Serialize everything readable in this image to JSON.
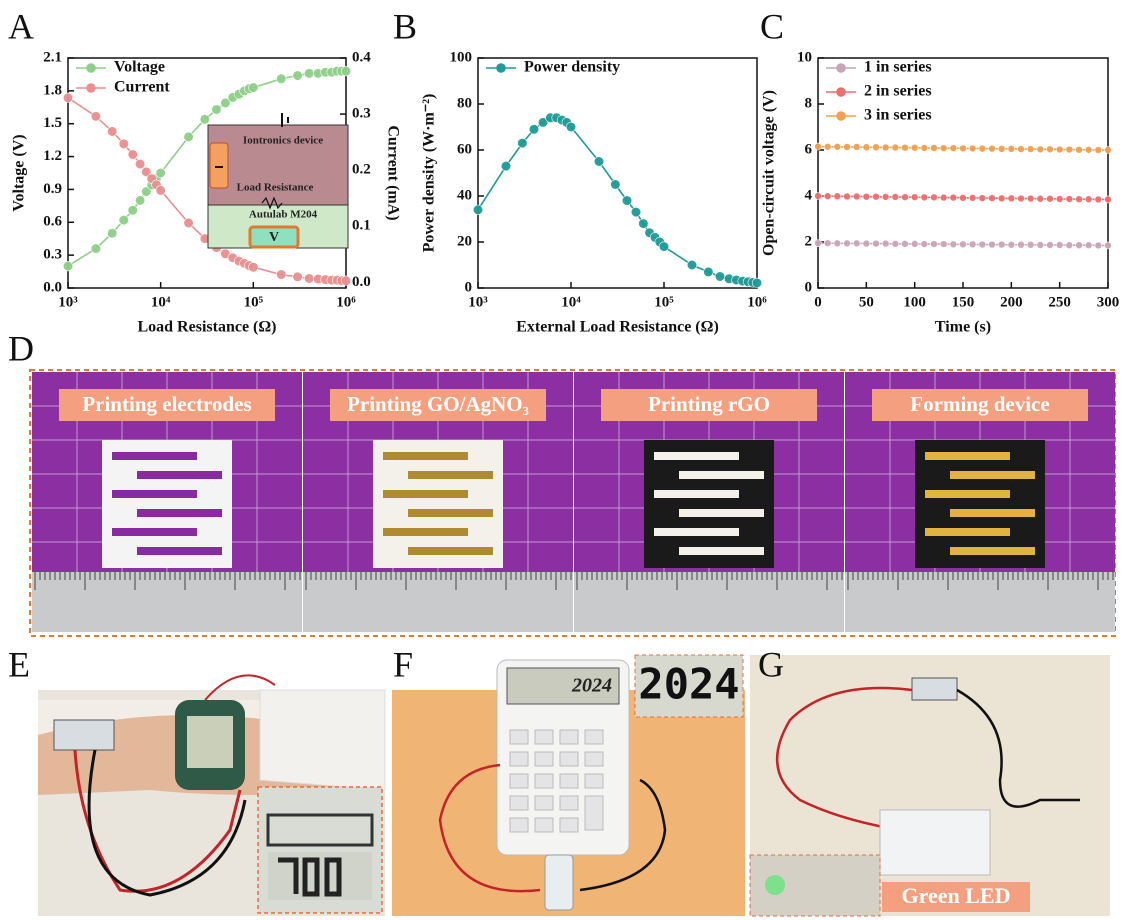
{
  "panel_labels": [
    "A",
    "B",
    "C",
    "D",
    "E",
    "F",
    "G"
  ],
  "chart_data": [
    {
      "type": "line",
      "xscale": "log",
      "xlabel": "Load Resistance (Ω)",
      "ylabel": "Voltage (V)",
      "y2label": "Current (mA)",
      "x": [
        1000,
        2000,
        3000,
        4000,
        5000,
        6000,
        7000,
        8000,
        9000,
        10000,
        20000,
        30000,
        40000,
        50000,
        60000,
        70000,
        80000,
        90000,
        100000,
        200000,
        300000,
        400000,
        500000,
        600000,
        700000,
        800000,
        900000,
        1000000
      ],
      "xlim": [
        1000,
        1000000
      ],
      "xticks": [
        {
          "value": 1000,
          "label": "10³"
        },
        {
          "value": 10000,
          "label": "10⁴"
        },
        {
          "value": 100000,
          "label": "10⁵"
        },
        {
          "value": 1000000,
          "label": "10⁶"
        }
      ],
      "ylim": [
        0,
        2.1
      ],
      "yticks": [
        {
          "value": 0,
          "label": "0.0"
        },
        0.3,
        0.6,
        0.9,
        1.2,
        1.5,
        1.8,
        2.1
      ],
      "y2lim": [
        -0.01,
        0.4
      ],
      "y2ticks": [
        {
          "value": 0,
          "label": "0.0"
        },
        0.1,
        0.2,
        0.3,
        0.4
      ],
      "legend": "upper left",
      "series": [
        {
          "name": "Voltage",
          "color": "#8fcf8a",
          "values": [
            0.2,
            0.36,
            0.5,
            0.62,
            0.71,
            0.8,
            0.88,
            0.94,
            1.0,
            1.05,
            1.38,
            1.54,
            1.63,
            1.69,
            1.74,
            1.77,
            1.8,
            1.82,
            1.83,
            1.91,
            1.94,
            1.96,
            1.96,
            1.97,
            1.97,
            1.98,
            1.98,
            1.98
          ]
        },
        {
          "name": "Current",
          "color": "#e89090",
          "axis": "y2",
          "values": [
            0.329,
            0.296,
            0.269,
            0.247,
            0.228,
            0.211,
            0.197,
            0.185,
            0.174,
            0.164,
            0.106,
            0.078,
            0.062,
            0.051,
            0.044,
            0.038,
            0.034,
            0.03,
            0.027,
            0.014,
            0.01,
            0.007,
            0.006,
            0.005,
            0.004,
            0.004,
            0.003,
            0.003
          ]
        }
      ],
      "annotations": [
        "Iontronics device",
        "Load Resistance",
        "Autulab M204",
        "V"
      ]
    },
    {
      "type": "line",
      "xscale": "log",
      "xlabel": "External Load Resistance (Ω)",
      "ylabel": "Power density (W·m⁻²)",
      "x": [
        1000,
        2000,
        3000,
        4000,
        5000,
        6000,
        7000,
        8000,
        9000,
        10000,
        20000,
        30000,
        40000,
        50000,
        60000,
        70000,
        80000,
        90000,
        100000,
        200000,
        300000,
        400000,
        500000,
        600000,
        700000,
        800000,
        900000,
        1000000
      ],
      "xlim": [
        1000,
        1000000
      ],
      "xticks": [
        {
          "value": 1000,
          "label": "10³"
        },
        {
          "value": 10000,
          "label": "10⁴"
        },
        {
          "value": 100000,
          "label": "10⁵"
        },
        {
          "value": 1000000,
          "label": "10⁶"
        }
      ],
      "ylim": [
        0,
        100
      ],
      "yticks": [
        0,
        20,
        40,
        60,
        80,
        100
      ],
      "legend": "upper left",
      "series": [
        {
          "name": "Power density",
          "color": "#1f9a96",
          "values": [
            34,
            53,
            63,
            69,
            72,
            74,
            74,
            73,
            72,
            70,
            55,
            45,
            38,
            33,
            28,
            24,
            22,
            20,
            18,
            10,
            7,
            5,
            4,
            3.5,
            3,
            2.7,
            2.4,
            2.2
          ]
        }
      ]
    },
    {
      "type": "line",
      "xlabel": "Time (s)",
      "ylabel": "Open-circuit voltage (V)",
      "x": [
        0,
        10,
        20,
        30,
        40,
        50,
        60,
        70,
        80,
        90,
        100,
        110,
        120,
        130,
        140,
        150,
        160,
        170,
        180,
        190,
        200,
        210,
        220,
        230,
        240,
        250,
        260,
        270,
        280,
        290,
        300
      ],
      "xlim": [
        0,
        300
      ],
      "xticks": [
        0,
        50,
        100,
        150,
        200,
        250,
        300
      ],
      "ylim": [
        0,
        10
      ],
      "yticks": [
        0,
        2,
        4,
        6,
        8,
        10
      ],
      "legend": "upper left",
      "series": [
        {
          "name": "1 in series",
          "color": "#c9a6b5",
          "values": [
            1.95,
            1.95,
            1.94,
            1.94,
            1.94,
            1.93,
            1.93,
            1.93,
            1.92,
            1.92,
            1.92,
            1.91,
            1.91,
            1.91,
            1.9,
            1.9,
            1.9,
            1.89,
            1.89,
            1.89,
            1.88,
            1.88,
            1.88,
            1.87,
            1.87,
            1.87,
            1.86,
            1.86,
            1.86,
            1.85,
            1.85
          ]
        },
        {
          "name": "2 in series",
          "color": "#ec6f6f",
          "values": [
            4.0,
            3.99,
            3.99,
            3.98,
            3.98,
            3.97,
            3.97,
            3.96,
            3.96,
            3.95,
            3.95,
            3.94,
            3.94,
            3.93,
            3.93,
            3.92,
            3.92,
            3.91,
            3.91,
            3.9,
            3.9,
            3.89,
            3.89,
            3.88,
            3.88,
            3.87,
            3.87,
            3.86,
            3.86,
            3.85,
            3.85
          ]
        },
        {
          "name": "3 in series",
          "color": "#f0a050",
          "values": [
            6.15,
            6.14,
            6.14,
            6.13,
            6.13,
            6.12,
            6.12,
            6.11,
            6.11,
            6.1,
            6.1,
            6.09,
            6.09,
            6.08,
            6.08,
            6.07,
            6.07,
            6.06,
            6.06,
            6.05,
            6.05,
            6.04,
            6.04,
            6.03,
            6.03,
            6.02,
            6.02,
            6.01,
            6.01,
            6.0,
            6.0
          ]
        }
      ]
    }
  ],
  "photos": {
    "steps": [
      "Printing electrodes",
      "Printing GO/AgNO₃",
      "Printing rGO",
      "Forming device"
    ],
    "calculator_display": "2024",
    "led_label": "Green LED"
  }
}
